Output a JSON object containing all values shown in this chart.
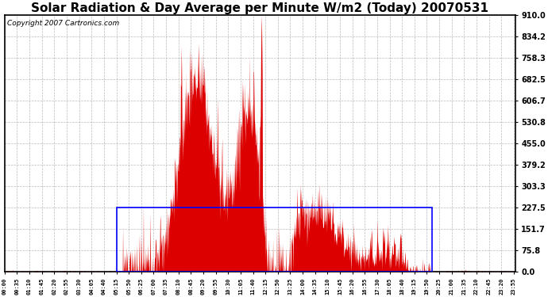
{
  "title": "Solar Radiation & Day Average per Minute W/m2 (Today) 20070531",
  "copyright": "Copyright 2007 Cartronics.com",
  "ymin": 0.0,
  "ymax": 910.0,
  "yticks": [
    0.0,
    75.8,
    151.7,
    227.5,
    303.3,
    379.2,
    455.0,
    530.8,
    606.7,
    682.5,
    758.3,
    834.2,
    910.0
  ],
  "ytick_labels": [
    "0.0",
    "75.8",
    "151.7",
    "227.5",
    "303.3",
    "379.2",
    "455.0",
    "530.8",
    "606.7",
    "682.5",
    "758.3",
    "834.2",
    "910.0"
  ],
  "fill_color": "#dd0000",
  "avg_rect_color": "blue",
  "avg_value": 227.5,
  "background_color": "white",
  "grid_color": "#aaaaaa",
  "title_fontsize": 11,
  "copyright_fontsize": 6.5,
  "tick_fontsize": 7,
  "xtick_step_minutes": 35,
  "n_minutes": 1440,
  "seed": 12345
}
